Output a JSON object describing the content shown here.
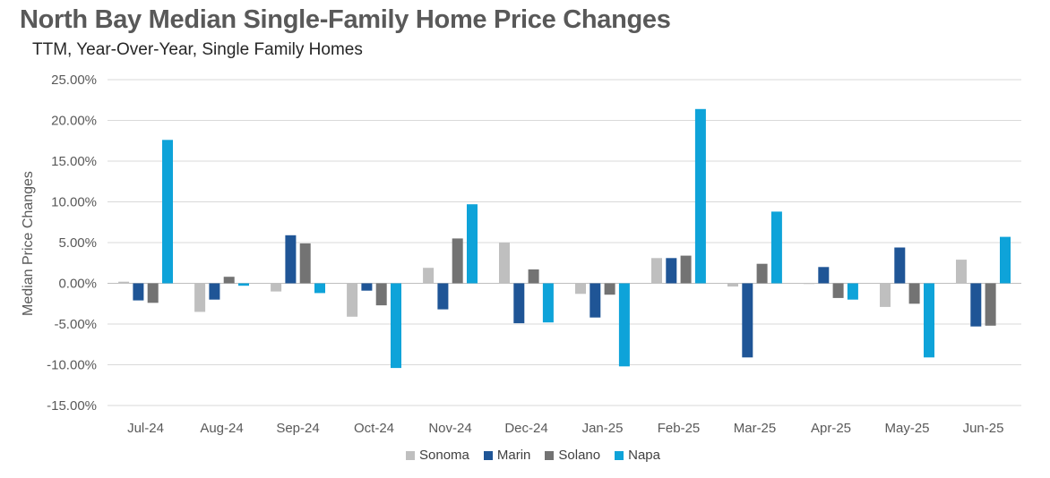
{
  "title": "North Bay Median Single-Family Home Price Changes",
  "subtitle": "TTM, Year-Over-Year, Single Family Homes",
  "chart_data": {
    "type": "bar",
    "categories": [
      "Jul-24",
      "Aug-24",
      "Sep-24",
      "Oct-24",
      "Nov-24",
      "Dec-24",
      "Jan-25",
      "Feb-25",
      "Mar-25",
      "Apr-25",
      "May-25",
      "Jun-25"
    ],
    "series": [
      {
        "name": "Sonoma",
        "color": "#bfbfbf",
        "values": [
          0.2,
          -3.5,
          -1.0,
          -4.1,
          1.9,
          5.0,
          -1.3,
          3.1,
          -0.4,
          0.0,
          -2.9,
          2.9
        ]
      },
      {
        "name": "Marin",
        "color": "#1f5596",
        "values": [
          -2.1,
          -2.0,
          5.9,
          -0.9,
          -3.2,
          -4.9,
          -4.2,
          3.1,
          -9.1,
          2.0,
          4.4,
          -5.3
        ]
      },
      {
        "name": "Solano",
        "color": "#737373",
        "values": [
          -2.4,
          0.8,
          4.9,
          -2.7,
          5.5,
          1.7,
          -1.4,
          3.4,
          2.4,
          -1.8,
          -2.5,
          -5.2
        ]
      },
      {
        "name": "Napa",
        "color": "#0ea3d9",
        "values": [
          17.6,
          -0.3,
          -1.2,
          -10.4,
          9.7,
          -4.8,
          -10.2,
          21.4,
          8.8,
          -2.0,
          -9.1,
          5.7
        ]
      }
    ],
    "ylabel": "Median Price Changes",
    "ylim": [
      -15,
      25
    ],
    "yticks": [
      25,
      20,
      15,
      10,
      5,
      0,
      -5,
      -10,
      -15
    ],
    "ytick_labels": [
      "25.00%",
      "20.00%",
      "15.00%",
      "10.00%",
      "5.00%",
      "0.00%",
      "-5.00%",
      "-10.00%",
      "-15.00%"
    ],
    "grid": true,
    "legend_position": "bottom"
  }
}
